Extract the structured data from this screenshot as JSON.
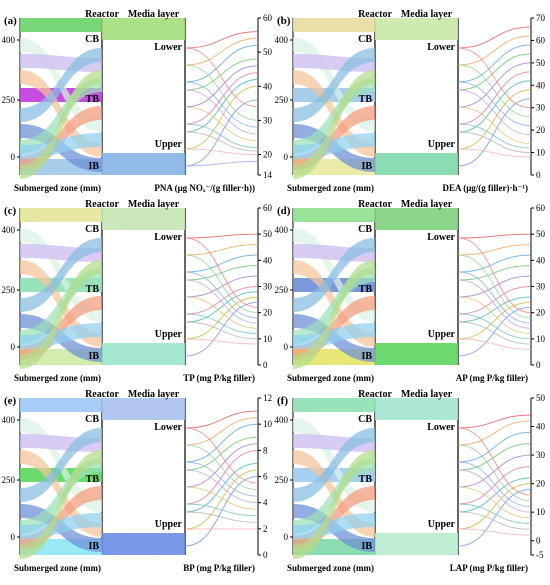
{
  "labels": {
    "reactor": "Reactor",
    "media_layer": "Media layer",
    "submerged_zone": "Submerged zone (mm)",
    "lower": "Lower",
    "upper": "Upper",
    "cb": "CB",
    "tb": "TB",
    "ib": "IB",
    "left_ticks": [
      "400",
      "250",
      "0"
    ]
  },
  "flow_colors": [
    "#d9f2e4",
    "#cbb8f0",
    "#f5c49a",
    "#87bde0",
    "#6a8ed6",
    "#9be0b8",
    "#f29a7a",
    "#8fd0f0",
    "#b3dc8a",
    "#e6b8e6"
  ],
  "chart_data": [
    {
      "type": "alluvial-parallel",
      "panel": "(a)",
      "metric_label": "PNA (μg NOₓ⁻/(g filler·h))",
      "ylim": [
        14,
        60
      ],
      "ticks": [
        "14",
        "20",
        "30",
        "40",
        "50",
        "60"
      ],
      "colors": {
        "reactor_bar": "#6ad26a",
        "media_bar": "#a4de7a",
        "upper_bar": "#86b4e6",
        "tb_bar": "#c03bdc",
        "ib_bar": "#9fc7ea"
      },
      "series_values": [
        56,
        54,
        52,
        48,
        46,
        44,
        42,
        40,
        36,
        34,
        30,
        28,
        26,
        24,
        22,
        21,
        20,
        18
      ]
    },
    {
      "type": "alluvial-parallel",
      "panel": "(b)",
      "metric_label": "DEA (μg/(g filler)·h⁻¹)",
      "ylim": [
        0,
        70
      ],
      "ticks": [
        "0",
        "10",
        "20",
        "30",
        "40",
        "50",
        "60",
        "70"
      ],
      "colors": {
        "reactor_bar": "#e8dca0",
        "media_bar": "#c9e8a8",
        "upper_bar": "#7fd8a8",
        "tb_bar": "#9cc8e8",
        "ib_bar": "#e8e8a0"
      },
      "series_values": [
        66,
        62,
        58,
        54,
        50,
        46,
        42,
        38,
        34,
        30,
        26,
        22,
        18,
        14,
        12,
        10,
        8
      ]
    },
    {
      "type": "alluvial-parallel",
      "panel": "(c)",
      "metric_label": "TP (mg P/kg filler)",
      "ylim": [
        0,
        60
      ],
      "ticks": [
        "0",
        "10",
        "20",
        "30",
        "40",
        "50",
        "60"
      ],
      "colors": {
        "reactor_bar": "#e4e49a",
        "media_bar": "#c4e6b4",
        "upper_bar": "#9ae6cc",
        "tb_bar": "#8ee0b4",
        "ib_bar": "#cfeaa4"
      },
      "series_values": [
        50,
        46,
        42,
        38,
        34,
        30,
        28,
        26,
        24,
        22,
        20,
        18,
        16,
        14,
        12,
        10,
        8
      ]
    },
    {
      "type": "alluvial-parallel",
      "panel": "(d)",
      "metric_label": "AP (mg P/kg filler)",
      "ylim": [
        0,
        60
      ],
      "ticks": [
        "0",
        "10",
        "20",
        "30",
        "40",
        "50",
        "60"
      ],
      "colors": {
        "reactor_bar": "#8ee08e",
        "media_bar": "#7fd27f",
        "upper_bar": "#5cd65c",
        "tb_bar": "#6a8ed6",
        "ib_bar": "#e6e66a"
      },
      "series_values": [
        50,
        46,
        42,
        38,
        34,
        30,
        26,
        24,
        22,
        20,
        18,
        16,
        14,
        12,
        10,
        8,
        6
      ]
    },
    {
      "type": "alluvial-parallel",
      "panel": "(e)",
      "metric_label": "BP (mg P/kg filler)",
      "ylim": [
        0,
        12
      ],
      "ticks": [
        "0",
        "2",
        "4",
        "6",
        "8",
        "10",
        "12"
      ],
      "colors": {
        "reactor_bar": "#9cc8f4",
        "media_bar": "#a8c0f0",
        "upper_bar": "#6a8ee6",
        "tb_bar": "#5cd65c",
        "ib_bar": "#8ee8f4"
      },
      "series_values": [
        11,
        10.5,
        10,
        9,
        8.5,
        8,
        7,
        6.5,
        6,
        5.5,
        5,
        4.5,
        4,
        3.5,
        3,
        2.5,
        2
      ]
    },
    {
      "type": "alluvial-parallel",
      "panel": "(f)",
      "metric_label": "LAP (mg P/kg filler)",
      "ylim": [
        -5,
        50
      ],
      "ticks": [
        "-5",
        "0",
        "10",
        "20",
        "30",
        "40",
        "50"
      ],
      "colors": {
        "reactor_bar": "#8ee0b4",
        "media_bar": "#a4e4d0",
        "upper_bar": "#b8ecd0",
        "tb_bar": "#9ccaf0",
        "ib_bar": "#7fd8a8"
      },
      "series_values": [
        44,
        42,
        38,
        34,
        30,
        26,
        22,
        20,
        18,
        16,
        14,
        12,
        10,
        8,
        6,
        4,
        2
      ]
    }
  ]
}
